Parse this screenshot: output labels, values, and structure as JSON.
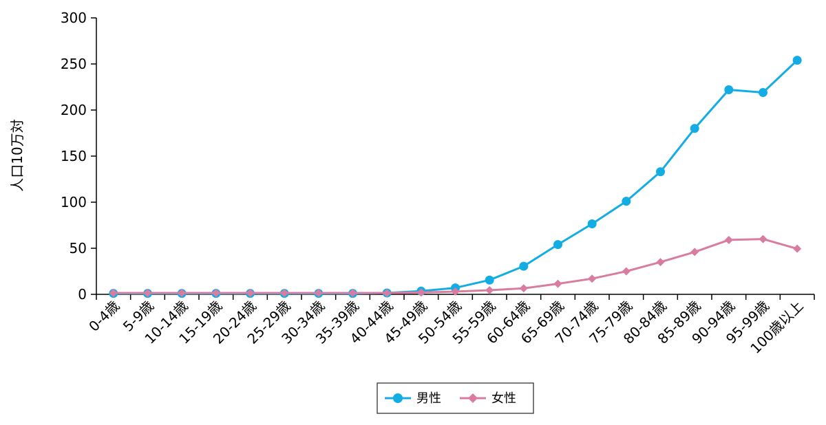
{
  "chart_data": {
    "type": "line",
    "title": "",
    "xlabel": "",
    "ylabel": "人口10万対",
    "ylim": [
      0,
      300
    ],
    "yticks": [
      0,
      50,
      100,
      150,
      200,
      250,
      300
    ],
    "grid": false,
    "legend_position": "bottom-center",
    "categories": [
      "0-4歳",
      "5-9歳",
      "10-14歳",
      "15-19歳",
      "20-24歳",
      "25-29歳",
      "30-34歳",
      "35-39歳",
      "40-44歳",
      "45-49歳",
      "50-54歳",
      "55-59歳",
      "60-64歳",
      "65-69歳",
      "70-74歳",
      "75-79歳",
      "80-84歳",
      "85-89歳",
      "90-94歳",
      "95-99歳",
      "100歳以上"
    ],
    "series": [
      {
        "name": "男性",
        "color": "#13ade4",
        "marker": "circle",
        "values": [
          1,
          1,
          1,
          1,
          1,
          1,
          1,
          1,
          1.5,
          3.5,
          7,
          15.5,
          30.5,
          54,
          76.5,
          101,
          133,
          180,
          222,
          219,
          254
        ]
      },
      {
        "name": "女性",
        "color": "#d87ca0",
        "marker": "diamond",
        "values": [
          1.5,
          1.5,
          1.5,
          1.5,
          1.5,
          1.5,
          1.5,
          1.5,
          1.5,
          2,
          3,
          4.5,
          6.5,
          11.5,
          17,
          25,
          35,
          46,
          59,
          60,
          49.5
        ]
      }
    ]
  }
}
